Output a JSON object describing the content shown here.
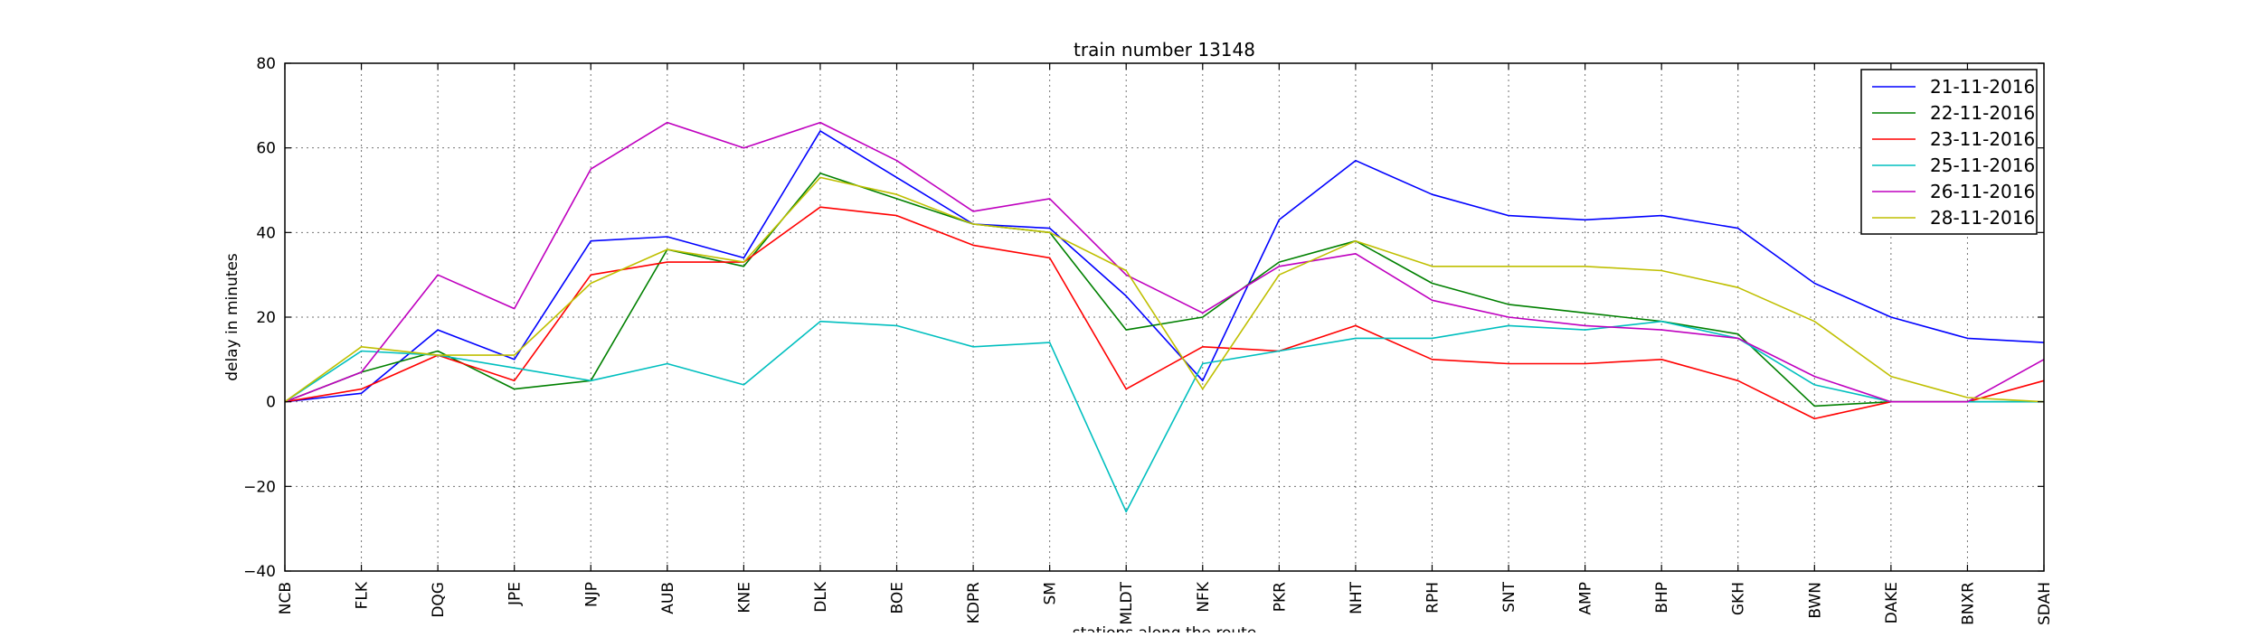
{
  "chart_data": {
    "type": "line",
    "title": "train number 13148",
    "xlabel": "stations along the route",
    "ylabel": "delay in minutes",
    "ylim": [
      -40,
      80
    ],
    "yticks": [
      80,
      60,
      40,
      20,
      0,
      -20,
      -40
    ],
    "ytick_labels": [
      "80",
      "60",
      "40",
      "20",
      "0",
      "−20",
      "−40"
    ],
    "grid": true,
    "legend_position": "top-right",
    "categories": [
      "NCB",
      "FLK",
      "DQG",
      "JPE",
      "NJP",
      "AUB",
      "KNE",
      "DLK",
      "BOE",
      "KDPR",
      "SM",
      "MLDT",
      "NFK",
      "PKR",
      "NHT",
      "RPH",
      "SNT",
      "AMP",
      "BHP",
      "GKH",
      "BWN",
      "DAKE",
      "BNXR",
      "SDAH"
    ],
    "series": [
      {
        "name": "21-11-2016",
        "color": "#0000ff",
        "values": [
          0,
          2,
          17,
          10,
          38,
          39,
          34,
          64,
          53,
          42,
          41,
          25,
          5,
          43,
          57,
          49,
          44,
          43,
          44,
          41,
          28,
          20,
          15,
          14
        ]
      },
      {
        "name": "22-11-2016",
        "color": "#008000",
        "values": [
          0,
          7,
          12,
          3,
          5,
          36,
          32,
          54,
          48,
          42,
          40,
          17,
          20,
          33,
          38,
          28,
          23,
          21,
          19,
          16,
          -1,
          0,
          0,
          0
        ]
      },
      {
        "name": "23-11-2016",
        "color": "#ff0000",
        "values": [
          0,
          3,
          11,
          5,
          30,
          33,
          33,
          46,
          44,
          37,
          34,
          3,
          13,
          12,
          18,
          10,
          9,
          9,
          10,
          5,
          -4,
          0,
          0,
          5
        ]
      },
      {
        "name": "25-11-2016",
        "color": "#00bfbf",
        "values": [
          0,
          12,
          11,
          8,
          5,
          9,
          4,
          19,
          18,
          13,
          14,
          -26,
          9,
          12,
          15,
          15,
          18,
          17,
          19,
          15,
          4,
          0,
          0,
          0
        ]
      },
      {
        "name": "26-11-2016",
        "color": "#bf00bf",
        "values": [
          0,
          7,
          30,
          22,
          55,
          66,
          60,
          66,
          57,
          45,
          48,
          30,
          21,
          32,
          35,
          24,
          20,
          18,
          17,
          15,
          6,
          0,
          0,
          10
        ]
      },
      {
        "name": "28-11-2016",
        "color": "#bfbf00",
        "values": [
          0,
          13,
          11,
          11,
          28,
          36,
          33,
          53,
          49,
          42,
          40,
          31,
          3,
          30,
          38,
          32,
          32,
          32,
          31,
          27,
          19,
          6,
          1,
          0
        ]
      }
    ]
  }
}
